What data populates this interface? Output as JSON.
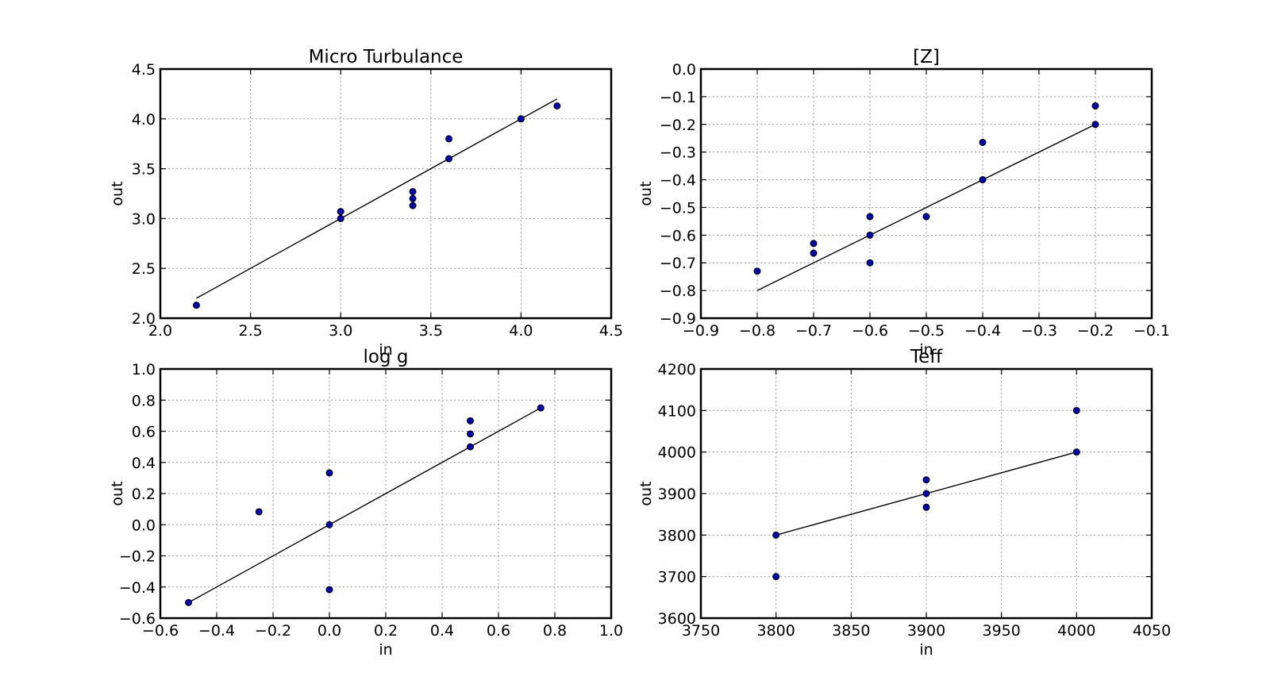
{
  "colors": {
    "points": "#0000aa",
    "line": "#000000",
    "grid": "#999999"
  },
  "chart_data": [
    {
      "type": "scatter",
      "title": "Micro Turbulance",
      "xlabel": "in",
      "ylabel": "out",
      "xlim": [
        2.0,
        4.5
      ],
      "ylim": [
        2.0,
        4.5
      ],
      "xticks": [
        "2.0",
        "2.5",
        "3.0",
        "3.5",
        "4.0",
        "4.5"
      ],
      "yticks": [
        "2.0",
        "2.5",
        "3.0",
        "3.5",
        "4.0",
        "4.5"
      ],
      "grid": true,
      "points": [
        [
          2.2,
          2.13
        ],
        [
          3.0,
          3.07
        ],
        [
          3.0,
          3.0
        ],
        [
          3.4,
          3.27
        ],
        [
          3.4,
          3.2
        ],
        [
          3.4,
          3.13
        ],
        [
          3.6,
          3.8
        ],
        [
          3.6,
          3.6
        ],
        [
          4.0,
          4.0
        ],
        [
          4.0,
          4.0
        ],
        [
          4.2,
          4.13
        ]
      ],
      "line": [
        [
          2.2,
          2.2
        ],
        [
          4.2,
          4.2
        ]
      ]
    },
    {
      "type": "scatter",
      "title": "[Z]",
      "xlabel": "in",
      "ylabel": "out",
      "xlim": [
        -0.9,
        -0.1
      ],
      "ylim": [
        -0.9,
        0.0
      ],
      "xticks": [
        "−0.9",
        "−0.8",
        "−0.7",
        "−0.6",
        "−0.5",
        "−0.4",
        "−0.3",
        "−0.2",
        "−0.1"
      ],
      "yticks": [
        "−0.9",
        "−0.8",
        "−0.7",
        "−0.6",
        "−0.5",
        "−0.4",
        "−0.3",
        "−0.2",
        "−0.1",
        "0.0"
      ],
      "grid": true,
      "points": [
        [
          -0.8,
          -0.73
        ],
        [
          -0.7,
          -0.63
        ],
        [
          -0.7,
          -0.665
        ],
        [
          -0.6,
          -0.533
        ],
        [
          -0.6,
          -0.6
        ],
        [
          -0.6,
          -0.7
        ],
        [
          -0.5,
          -0.533
        ],
        [
          -0.4,
          -0.265
        ],
        [
          -0.4,
          -0.4
        ],
        [
          -0.2,
          -0.133
        ],
        [
          -0.2,
          -0.2
        ]
      ],
      "line": [
        [
          -0.8,
          -0.8
        ],
        [
          -0.2,
          -0.2
        ]
      ]
    },
    {
      "type": "scatter",
      "title": "log g",
      "xlabel": "in",
      "ylabel": "out",
      "xlim": [
        -0.6,
        1.0
      ],
      "ylim": [
        -0.6,
        1.0
      ],
      "xticks": [
        "−0.6",
        "−0.4",
        "−0.2",
        "0.0",
        "0.2",
        "0.4",
        "0.6",
        "0.8",
        "1.0"
      ],
      "yticks": [
        "−0.6",
        "−0.4",
        "−0.2",
        "0.0",
        "0.2",
        "0.4",
        "0.6",
        "0.8",
        "1.0"
      ],
      "grid": true,
      "points": [
        [
          -0.5,
          -0.5
        ],
        [
          -0.25,
          0.083
        ],
        [
          0.0,
          0.333
        ],
        [
          0.0,
          0.0
        ],
        [
          0.0,
          -0.417
        ],
        [
          0.5,
          0.667
        ],
        [
          0.5,
          0.583
        ],
        [
          0.5,
          0.5
        ],
        [
          0.75,
          0.75
        ]
      ],
      "line": [
        [
          -0.5,
          -0.5
        ],
        [
          0.75,
          0.75
        ]
      ]
    },
    {
      "type": "scatter",
      "title": "Teff",
      "xlabel": "in",
      "ylabel": "out",
      "xlim": [
        3750,
        4050
      ],
      "ylim": [
        3600,
        4200
      ],
      "xticks": [
        "3750",
        "3800",
        "3850",
        "3900",
        "3950",
        "4000",
        "4050"
      ],
      "yticks": [
        "3600",
        "3700",
        "3800",
        "3900",
        "4000",
        "4100",
        "4200"
      ],
      "grid": true,
      "points": [
        [
          3800,
          3800
        ],
        [
          3800,
          3700
        ],
        [
          3900,
          3933
        ],
        [
          3900,
          3900
        ],
        [
          3900,
          3867
        ],
        [
          4000,
          4100
        ],
        [
          4000,
          4000
        ]
      ],
      "line": [
        [
          3800,
          3800
        ],
        [
          3900,
          3900
        ],
        [
          4000,
          4000
        ]
      ]
    }
  ]
}
